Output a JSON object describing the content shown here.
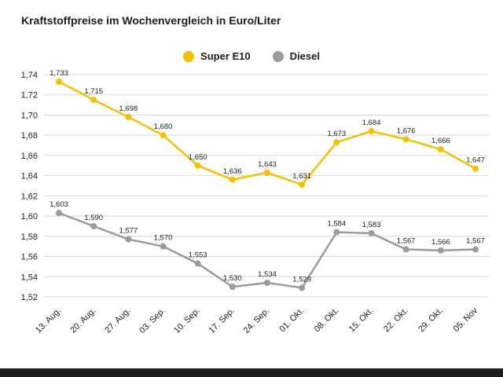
{
  "title": "Kraftstoffpreise im Wochenvergleich in Euro/Liter",
  "legend": [
    {
      "label": "Super E10",
      "color": "#f2c200"
    },
    {
      "label": "Diesel",
      "color": "#9b9b9b"
    }
  ],
  "chart_data": {
    "type": "line",
    "title": "Kraftstoffpreise im Wochenvergleich in Euro/Liter",
    "xlabel": "",
    "ylabel": "Euro/Liter",
    "grid": true,
    "legend_position": "top-center",
    "ylim": [
      1.52,
      1.74
    ],
    "yticks": [
      1.74,
      1.72,
      1.7,
      1.68,
      1.66,
      1.64,
      1.62,
      1.6,
      1.58,
      1.56,
      1.54,
      1.52
    ],
    "yticklabels": [
      "1,74",
      "1,72",
      "1,70",
      "1,68",
      "1,66",
      "1,64",
      "1,62",
      "1,60",
      "1,58",
      "1,56",
      "1,54",
      "1,52"
    ],
    "categories": [
      "13. Aug.",
      "20. Aug.",
      "27. Aug.",
      "03. Sep.",
      "10. Sep.",
      "17. Sep.",
      "24. Sep.",
      "01. Okt.",
      "08. Okt.",
      "15. Okt.",
      "22. Okt.",
      "29. Okt.",
      "05. Nov"
    ],
    "series": [
      {
        "name": "Super E10",
        "color": "#f2c200",
        "values": [
          1.733,
          1.715,
          1.698,
          1.68,
          1.65,
          1.636,
          1.643,
          1.631,
          1.673,
          1.684,
          1.676,
          1.666,
          1.647
        ],
        "labels": [
          "1,733",
          "1,715",
          "1,698",
          "1,680",
          "1,650",
          "1,636",
          "1,643",
          "1,631",
          "1,673",
          "1,684",
          "1,676",
          "1,666",
          "1,647"
        ]
      },
      {
        "name": "Diesel",
        "color": "#9b9b9b",
        "values": [
          1.603,
          1.59,
          1.577,
          1.57,
          1.553,
          1.53,
          1.534,
          1.529,
          1.584,
          1.583,
          1.567,
          1.566,
          1.567
        ],
        "labels": [
          "1,603",
          "1,590",
          "1,577",
          "1,570",
          "1,553",
          "1,530",
          "1,534",
          "1,529",
          "1,584",
          "1,583",
          "1,567",
          "1,566",
          "1,567"
        ]
      }
    ],
    "label_color": "#1d1d1b",
    "grid_color": "#d8d8d8"
  }
}
